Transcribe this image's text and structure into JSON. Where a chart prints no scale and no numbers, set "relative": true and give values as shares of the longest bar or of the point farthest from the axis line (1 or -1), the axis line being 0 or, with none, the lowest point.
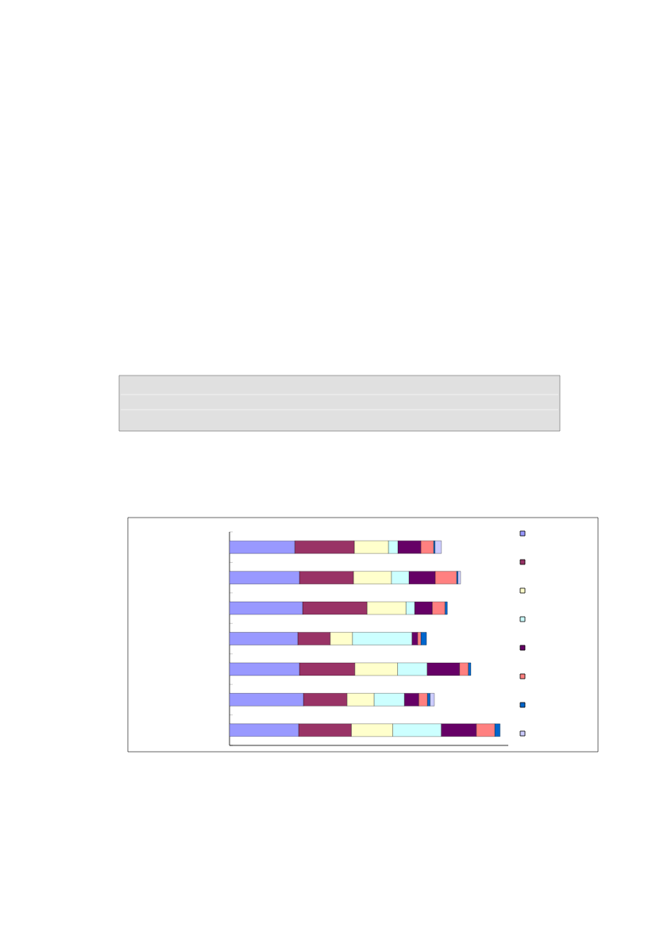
{
  "chart_data": {
    "type": "bar",
    "orientation": "horizontal",
    "stacked": true,
    "relative": true,
    "categories": [
      null,
      null,
      null,
      null,
      null,
      null,
      null
    ],
    "series": [
      {
        "color": "#9999ff",
        "values": [
          0.241,
          0.258,
          0.27,
          0.252,
          0.258,
          0.273,
          0.255
        ]
      },
      {
        "color": "#993366",
        "values": [
          0.22,
          0.2,
          0.238,
          0.12,
          0.205,
          0.161,
          0.195
        ]
      },
      {
        "color": "#ffffcc",
        "values": [
          0.126,
          0.14,
          0.144,
          0.082,
          0.158,
          0.1,
          0.153
        ]
      },
      {
        "color": "#ccffff",
        "values": [
          0.035,
          0.065,
          0.032,
          0.22,
          0.109,
          0.112,
          0.179
        ]
      },
      {
        "color": "#660066",
        "values": [
          0.085,
          0.097,
          0.065,
          0.021,
          0.12,
          0.053,
          0.13
        ]
      },
      {
        "color": "#ff8080",
        "values": [
          0.047,
          0.079,
          0.047,
          0.012,
          0.032,
          0.032,
          0.068
        ]
      },
      {
        "color": "#0066cc",
        "values": [
          0.005,
          0.005,
          0.009,
          0.021,
          0.01,
          0.01,
          0.02
        ]
      },
      {
        "color": "#ccccff",
        "values": [
          0.024,
          0.01,
          0.0,
          0.0,
          0.0,
          0.016,
          0.0
        ]
      }
    ]
  }
}
